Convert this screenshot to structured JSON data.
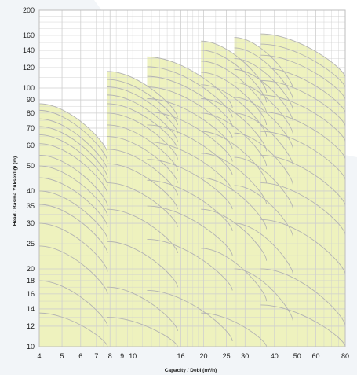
{
  "chart_data": {
    "type": "area",
    "title": "",
    "xlabel": "Capacity / Debi (m³/h)",
    "ylabel": "Head / Basma Yüksekliği (m)",
    "x_scale": "log",
    "y_scale": "log",
    "xlim": [
      4,
      80
    ],
    "ylim": [
      10,
      200
    ],
    "x_ticks": [
      4,
      5,
      6,
      7,
      8,
      9,
      10,
      16,
      20,
      25,
      30,
      40,
      50,
      60,
      80
    ],
    "y_ticks": [
      10,
      12,
      14,
      16,
      18,
      20,
      25,
      30,
      35,
      40,
      50,
      60,
      70,
      80,
      90,
      100,
      120,
      140,
      160,
      200
    ],
    "grid": true,
    "colors": {
      "fill": "#EEF2BE",
      "curve": "#B3B3B3",
      "grid": "#CFCFCF",
      "frame": "#BDBDBD",
      "background_accent": "#EEF1F5"
    },
    "pump_groups": [
      {
        "x_range": [
          4,
          7.8
        ],
        "top_head": 87,
        "curves": [
          {
            "head_at_min_q": 87,
            "head_at_max_q": 56
          },
          {
            "head_at_min_q": 82,
            "head_at_max_q": 52
          },
          {
            "head_at_min_q": 76,
            "head_at_max_q": 48
          },
          {
            "head_at_min_q": 71,
            "head_at_max_q": 45
          },
          {
            "head_at_min_q": 66,
            "head_at_max_q": 42
          },
          {
            "head_at_min_q": 61,
            "head_at_max_q": 39
          },
          {
            "head_at_min_q": 55,
            "head_at_max_q": 35
          },
          {
            "head_at_min_q": 50,
            "head_at_max_q": 32
          },
          {
            "head_at_min_q": 45,
            "head_at_max_q": 29
          },
          {
            "head_at_min_q": 40,
            "head_at_max_q": 26
          },
          {
            "head_at_min_q": 35.5,
            "head_at_max_q": 23
          },
          {
            "head_at_min_q": 30,
            "head_at_max_q": 19.5
          },
          {
            "head_at_min_q": 24.5,
            "head_at_max_q": 16
          },
          {
            "head_at_min_q": 18,
            "head_at_max_q": 12
          },
          {
            "head_at_min_q": 13.5,
            "head_at_max_q": 10
          }
        ]
      },
      {
        "x_range": [
          7.8,
          15.5
        ],
        "top_head": 116,
        "curves": [
          {
            "head_at_min_q": 116,
            "head_at_max_q": 77
          },
          {
            "head_at_min_q": 108,
            "head_at_max_q": 72
          },
          {
            "head_at_min_q": 101,
            "head_at_max_q": 67
          },
          {
            "head_at_min_q": 94,
            "head_at_max_q": 62
          },
          {
            "head_at_min_q": 87,
            "head_at_max_q": 58
          },
          {
            "head_at_min_q": 80,
            "head_at_max_q": 53
          },
          {
            "head_at_min_q": 72,
            "head_at_max_q": 48
          },
          {
            "head_at_min_q": 65,
            "head_at_max_q": 43
          },
          {
            "head_at_min_q": 58,
            "head_at_max_q": 38.5
          },
          {
            "head_at_min_q": 51,
            "head_at_max_q": 34
          },
          {
            "head_at_min_q": 43,
            "head_at_max_q": 29
          },
          {
            "head_at_min_q": 34,
            "head_at_max_q": 23
          },
          {
            "head_at_min_q": 25.5,
            "head_at_max_q": 17
          },
          {
            "head_at_min_q": 17,
            "head_at_max_q": 11.5
          },
          {
            "head_at_min_q": 13,
            "head_at_max_q": 10
          }
        ]
      },
      {
        "x_range": [
          11.5,
          26.5
        ],
        "top_head": 132,
        "curves": [
          {
            "head_at_min_q": 132,
            "head_at_max_q": 84
          },
          {
            "head_at_min_q": 121,
            "head_at_max_q": 77
          },
          {
            "head_at_min_q": 111,
            "head_at_max_q": 71
          },
          {
            "head_at_min_q": 101,
            "head_at_max_q": 64
          },
          {
            "head_at_min_q": 91,
            "head_at_max_q": 58
          },
          {
            "head_at_min_q": 81,
            "head_at_max_q": 52
          },
          {
            "head_at_min_q": 72,
            "head_at_max_q": 46
          },
          {
            "head_at_min_q": 62,
            "head_at_max_q": 40
          },
          {
            "head_at_min_q": 53,
            "head_at_max_q": 34
          },
          {
            "head_at_min_q": 44,
            "head_at_max_q": 28
          },
          {
            "head_at_min_q": 35,
            "head_at_max_q": 22.5
          },
          {
            "head_at_min_q": 26,
            "head_at_max_q": 16.5
          },
          {
            "head_at_min_q": 16.5,
            "head_at_max_q": 10.5
          }
        ]
      },
      {
        "x_range": [
          19.5,
          37
        ],
        "top_head": 152,
        "curves": [
          {
            "head_at_min_q": 152,
            "head_at_max_q": 96
          },
          {
            "head_at_min_q": 140,
            "head_at_max_q": 88
          },
          {
            "head_at_min_q": 127,
            "head_at_max_q": 80
          },
          {
            "head_at_min_q": 115,
            "head_at_max_q": 72
          },
          {
            "head_at_min_q": 103,
            "head_at_max_q": 65
          },
          {
            "head_at_min_q": 91,
            "head_at_max_q": 57
          },
          {
            "head_at_min_q": 80,
            "head_at_max_q": 50
          },
          {
            "head_at_min_q": 68,
            "head_at_max_q": 43
          },
          {
            "head_at_min_q": 56,
            "head_at_max_q": 35.5
          },
          {
            "head_at_min_q": 45,
            "head_at_max_q": 28.5
          },
          {
            "head_at_min_q": 34,
            "head_at_max_q": 21.5
          },
          {
            "head_at_min_q": 24,
            "head_at_max_q": 15
          },
          {
            "head_at_min_q": 13.5,
            "head_at_max_q": 10
          }
        ]
      },
      {
        "x_range": [
          27,
          48
        ],
        "top_head": 157,
        "curves": [
          {
            "head_at_min_q": 157,
            "head_at_max_q": 99
          },
          {
            "head_at_min_q": 143,
            "head_at_max_q": 90
          },
          {
            "head_at_min_q": 130,
            "head_at_max_q": 82
          },
          {
            "head_at_min_q": 118,
            "head_at_max_q": 74
          },
          {
            "head_at_min_q": 105,
            "head_at_max_q": 66
          },
          {
            "head_at_min_q": 92,
            "head_at_max_q": 58
          },
          {
            "head_at_min_q": 80,
            "head_at_max_q": 50
          },
          {
            "head_at_min_q": 67,
            "head_at_max_q": 42
          },
          {
            "head_at_min_q": 54,
            "head_at_max_q": 34
          },
          {
            "head_at_min_q": 42,
            "head_at_max_q": 26.5
          },
          {
            "head_at_min_q": 30,
            "head_at_max_q": 19
          },
          {
            "head_at_min_q": 20,
            "head_at_max_q": 12.5
          }
        ]
      },
      {
        "x_range": [
          35,
          80
        ],
        "top_head": 162,
        "curves": [
          {
            "head_at_min_q": 162,
            "head_at_max_q": 110
          },
          {
            "head_at_min_q": 148,
            "head_at_max_q": 100
          },
          {
            "head_at_min_q": 134,
            "head_at_max_q": 90
          },
          {
            "head_at_min_q": 120,
            "head_at_max_q": 80
          },
          {
            "head_at_min_q": 107,
            "head_at_max_q": 71
          },
          {
            "head_at_min_q": 94,
            "head_at_max_q": 62
          },
          {
            "head_at_min_q": 81,
            "head_at_max_q": 53
          },
          {
            "head_at_min_q": 68,
            "head_at_max_q": 44
          },
          {
            "head_at_min_q": 55,
            "head_at_max_q": 35
          },
          {
            "head_at_min_q": 43,
            "head_at_max_q": 27
          },
          {
            "head_at_min_q": 31,
            "head_at_max_q": 19
          },
          {
            "head_at_min_q": 20,
            "head_at_max_q": 12
          },
          {
            "head_at_min_q": 14.5,
            "head_at_max_q": 10
          }
        ]
      }
    ]
  }
}
